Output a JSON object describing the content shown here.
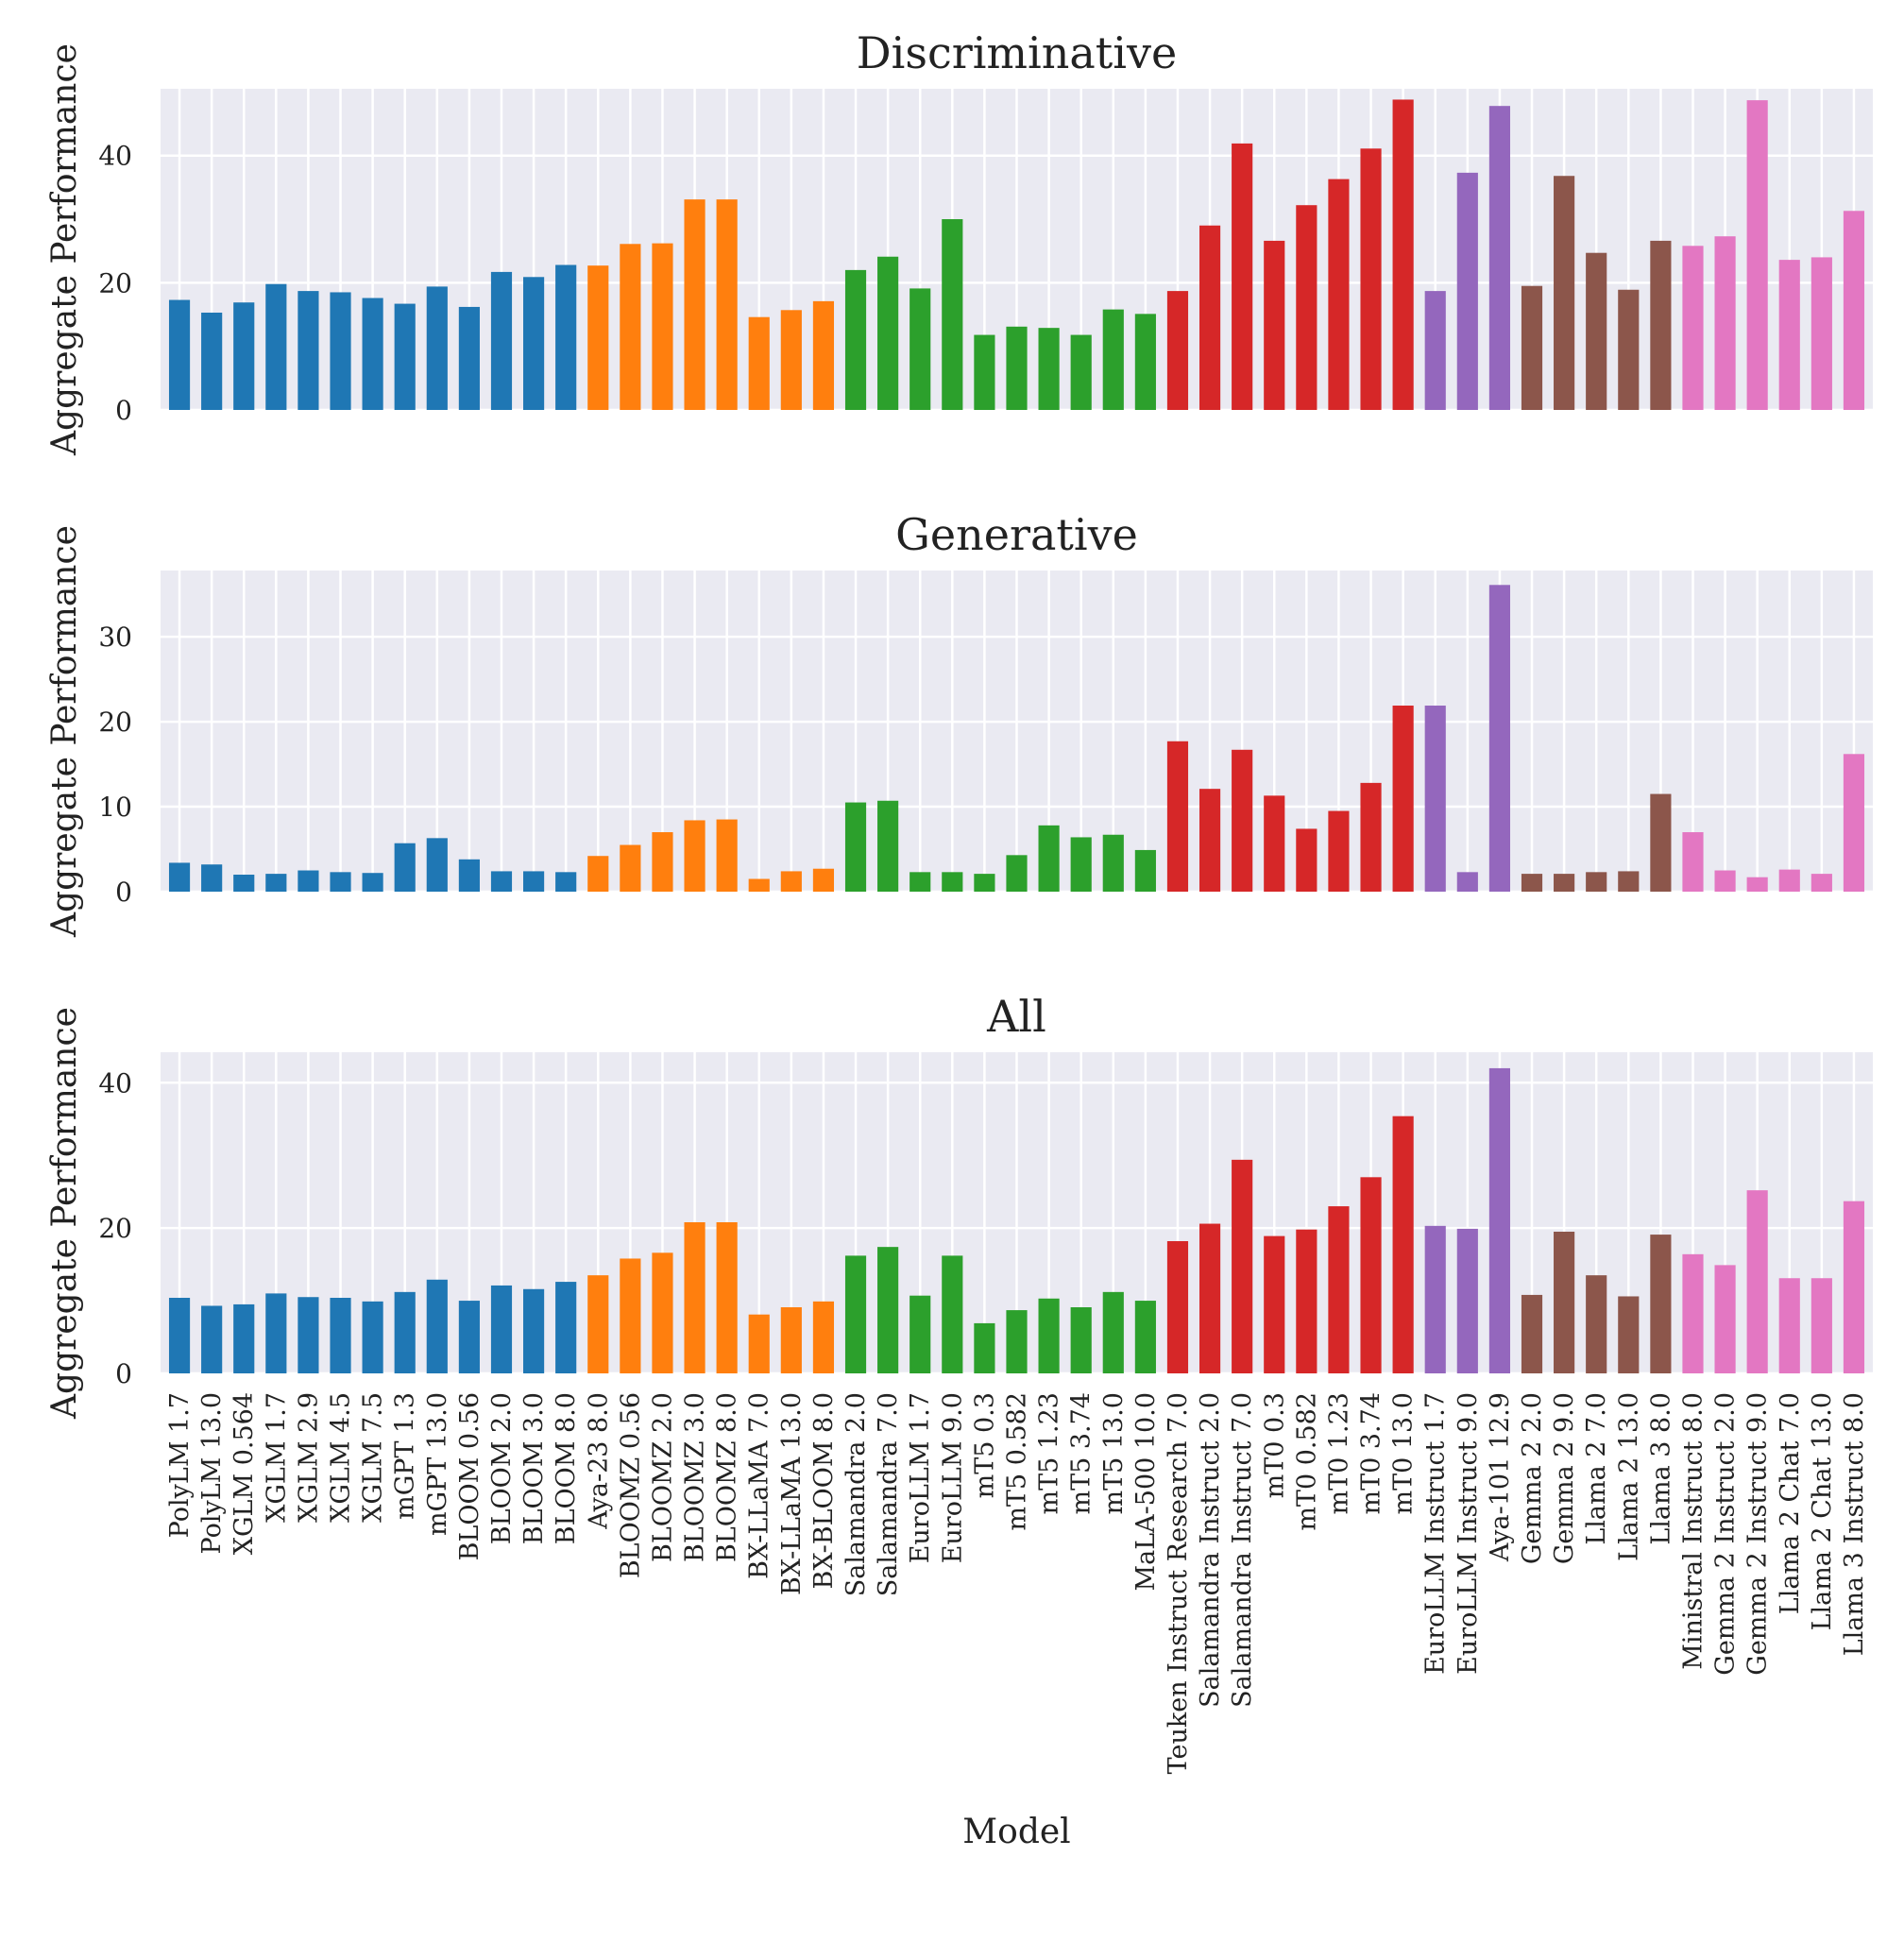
{
  "chart_data": {
    "type": "bar",
    "xlabel": "Model",
    "ylabel": "Aggregate Performance",
    "categories": [
      "PolyLM 1.7",
      "PolyLM 13.0",
      "XGLM 0.564",
      "XGLM 1.7",
      "XGLM 2.9",
      "XGLM 4.5",
      "XGLM 7.5",
      "mGPT 1.3",
      "mGPT 13.0",
      "BLOOM 0.56",
      "BLOOM 2.0",
      "BLOOM 3.0",
      "BLOOM 8.0",
      "Aya-23 8.0",
      "BLOOMZ 0.56",
      "BLOOMZ 2.0",
      "BLOOMZ 3.0",
      "BLOOMZ 8.0",
      "BX-LLaMA 7.0",
      "BX-LLaMA 13.0",
      "BX-BLOOM 8.0",
      "Salamandra 2.0",
      "Salamandra 7.0",
      "EuroLLM 1.7",
      "EuroLLM 9.0",
      "mT5 0.3",
      "mT5 0.582",
      "mT5 1.23",
      "mT5 3.74",
      "mT5 13.0",
      "MaLA-500 10.0",
      "Teuken Instruct Research 7.0",
      "Salamandra Instruct 2.0",
      "Salamandra Instruct 7.0",
      "mT0 0.3",
      "mT0 0.582",
      "mT0 1.23",
      "mT0 3.74",
      "mT0 13.0",
      "EuroLLM Instruct 1.7",
      "EuroLLM Instruct 9.0",
      "Aya-101 12.9",
      "Gemma 2 2.0",
      "Gemma 2 9.0",
      "Llama 2 7.0",
      "Llama 2 13.0",
      "Llama 3 8.0",
      "Ministral Instruct 8.0",
      "Gemma 2 Instruct 2.0",
      "Gemma 2 Instruct 9.0",
      "Llama 2 Chat 7.0",
      "Llama 2 Chat 13.0",
      "Llama 3 Instruct 8.0"
    ],
    "color_groups": [
      {
        "color": "#1f77b4",
        "count": 13
      },
      {
        "color": "#ff7f0e",
        "count": 8
      },
      {
        "color": "#2ca02c",
        "count": 10
      },
      {
        "color": "#d62728",
        "count": 8
      },
      {
        "color": "#9467bd",
        "count": 3
      },
      {
        "color": "#8c564b",
        "count": 5
      },
      {
        "color": "#e377c2",
        "count": 6
      }
    ],
    "panels": [
      {
        "title": "Discriminative",
        "ylim": [
          0,
          50.5
        ],
        "yticks": [
          0,
          20,
          40
        ],
        "values": [
          17.3,
          15.3,
          16.9,
          19.8,
          18.7,
          18.5,
          17.6,
          16.7,
          19.4,
          16.2,
          21.7,
          20.9,
          22.8,
          22.7,
          26.1,
          26.2,
          33.1,
          33.1,
          14.6,
          15.7,
          17.1,
          22.0,
          24.1,
          19.1,
          30.0,
          11.8,
          13.1,
          12.9,
          11.8,
          15.8,
          15.1,
          18.7,
          29.0,
          41.9,
          26.6,
          32.2,
          36.3,
          41.1,
          48.8,
          18.7,
          37.3,
          47.8,
          19.5,
          36.8,
          24.7,
          18.9,
          26.6,
          25.8,
          27.3,
          48.7,
          23.6,
          24.0,
          31.3
        ]
      },
      {
        "title": "Generative",
        "ylim": [
          0,
          37.8
        ],
        "yticks": [
          0,
          10,
          20,
          30
        ],
        "values": [
          3.4,
          3.2,
          2.0,
          2.1,
          2.5,
          2.3,
          2.2,
          5.7,
          6.3,
          3.8,
          2.4,
          2.4,
          2.3,
          4.2,
          5.5,
          7.0,
          8.4,
          8.5,
          1.5,
          2.4,
          2.7,
          10.5,
          10.7,
          2.3,
          2.3,
          2.1,
          4.3,
          7.8,
          6.4,
          6.7,
          4.9,
          17.7,
          12.1,
          16.7,
          11.3,
          7.4,
          9.5,
          12.8,
          21.9,
          21.9,
          2.3,
          36.1,
          2.1,
          2.1,
          2.3,
          2.4,
          11.5,
          7.0,
          2.5,
          1.7,
          2.6,
          2.1,
          16.2
        ]
      },
      {
        "title": "All",
        "ylim": [
          0,
          44.2
        ],
        "yticks": [
          0,
          20,
          40
        ],
        "values": [
          10.4,
          9.3,
          9.5,
          11.0,
          10.5,
          10.4,
          9.9,
          11.2,
          12.9,
          10.0,
          12.1,
          11.6,
          12.6,
          13.5,
          15.8,
          16.6,
          20.8,
          20.8,
          8.1,
          9.1,
          9.9,
          16.2,
          17.4,
          10.7,
          16.2,
          6.9,
          8.7,
          10.3,
          9.1,
          11.2,
          10.0,
          18.2,
          20.6,
          29.4,
          18.9,
          19.8,
          23.0,
          27.0,
          35.4,
          20.3,
          19.9,
          42.0,
          10.8,
          19.5,
          13.5,
          10.6,
          19.1,
          16.4,
          14.9,
          25.2,
          13.1,
          13.1,
          23.7
        ]
      }
    ]
  }
}
